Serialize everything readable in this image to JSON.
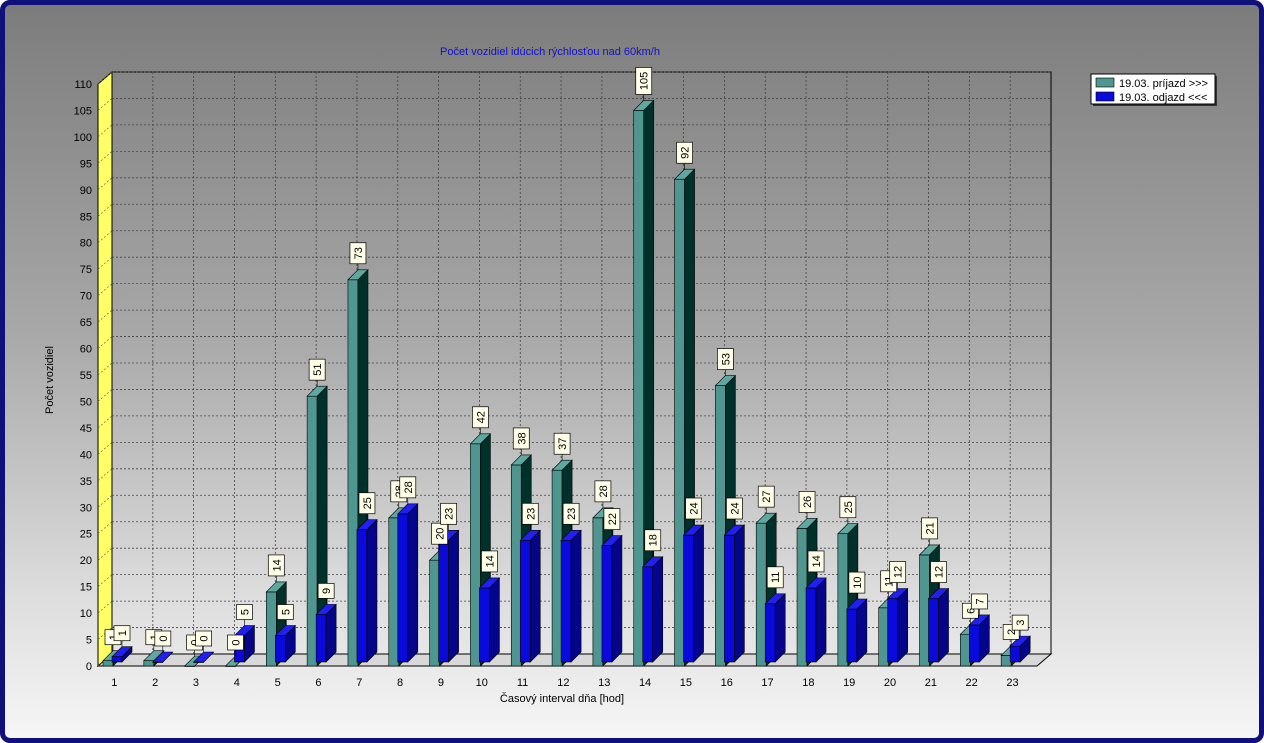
{
  "chart_data": {
    "type": "bar",
    "title": "Počet vozidiel idúcich rýchlosťou nad 60km/h",
    "xlabel": "Časový interval dňa [hod]",
    "ylabel": "Počet vozidiel",
    "ylim": [
      0,
      110
    ],
    "ytick_step": 5,
    "grid": true,
    "legend_position": "top-right",
    "categories": [
      "1",
      "2",
      "3",
      "4",
      "5",
      "6",
      "7",
      "8",
      "9",
      "10",
      "11",
      "12",
      "13",
      "14",
      "15",
      "16",
      "17",
      "18",
      "19",
      "20",
      "21",
      "22",
      "23"
    ],
    "series": [
      {
        "name": "19.03.  príjazd >>>",
        "color": "#4f9690",
        "values": [
          1,
          1,
          0,
          0,
          14,
          51,
          73,
          28,
          20,
          42,
          38,
          37,
          28,
          105,
          92,
          53,
          27,
          26,
          25,
          11,
          21,
          6,
          2
        ]
      },
      {
        "name": "19.03.  odjazd <<<",
        "color": "#0a0adc",
        "values": [
          1,
          0,
          0,
          5,
          5,
          9,
          25,
          28,
          23,
          14,
          23,
          23,
          22,
          18,
          24,
          24,
          11,
          14,
          10,
          12,
          12,
          7,
          3
        ]
      }
    ]
  }
}
